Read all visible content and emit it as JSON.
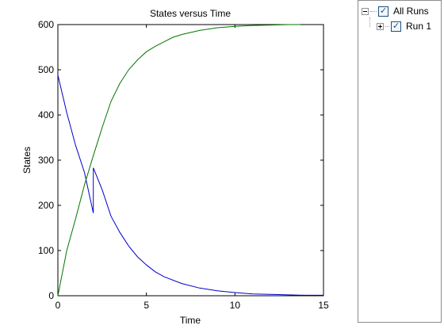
{
  "chart_data": {
    "type": "line",
    "title": "States versus Time",
    "xlabel": "Time",
    "ylabel": "States",
    "xlim": [
      0,
      15
    ],
    "ylim": [
      0,
      600
    ],
    "xticks": [
      "0",
      "5",
      "10",
      "15"
    ],
    "yticks": [
      "0",
      "100",
      "200",
      "300",
      "400",
      "500",
      "600"
    ],
    "grid": false,
    "series": [
      {
        "color": "#0000cc",
        "points": [
          [
            0,
            488
          ],
          [
            0.5,
            405
          ],
          [
            1.0,
            333
          ],
          [
            1.5,
            273
          ],
          [
            2.0,
            183
          ],
          [
            2.0,
            283
          ],
          [
            2.5,
            235
          ],
          [
            3.0,
            176
          ],
          [
            3.5,
            140
          ],
          [
            4.0,
            110
          ],
          [
            4.5,
            86
          ],
          [
            5.0,
            68
          ],
          [
            5.5,
            53
          ],
          [
            6.0,
            42
          ],
          [
            7.0,
            27
          ],
          [
            8.0,
            17
          ],
          [
            9.0,
            11
          ],
          [
            10.0,
            7
          ],
          [
            11.0,
            4
          ],
          [
            12.0,
            3
          ],
          [
            13.0,
            2
          ],
          [
            14.0,
            1
          ],
          [
            15.0,
            1
          ]
        ]
      },
      {
        "color": "#007700",
        "points": [
          [
            0,
            0
          ],
          [
            0.5,
            100
          ],
          [
            1.0,
            170
          ],
          [
            1.5,
            245
          ],
          [
            2.0,
            310
          ],
          [
            2.5,
            372
          ],
          [
            3.0,
            430
          ],
          [
            3.5,
            470
          ],
          [
            4.0,
            500
          ],
          [
            4.5,
            522
          ],
          [
            5.0,
            540
          ],
          [
            5.5,
            552
          ],
          [
            6.0,
            562
          ],
          [
            6.5,
            572
          ],
          [
            7.0,
            578
          ],
          [
            8.0,
            587
          ],
          [
            9.0,
            593
          ],
          [
            10.0,
            596
          ],
          [
            11.0,
            598
          ],
          [
            12.0,
            599
          ],
          [
            13.0,
            600
          ],
          [
            13.7,
            600
          ]
        ]
      }
    ]
  },
  "tree": {
    "root": {
      "label": "All Runs",
      "checked": "✓"
    },
    "child": {
      "label": "Run 1",
      "checked": "✓"
    }
  }
}
